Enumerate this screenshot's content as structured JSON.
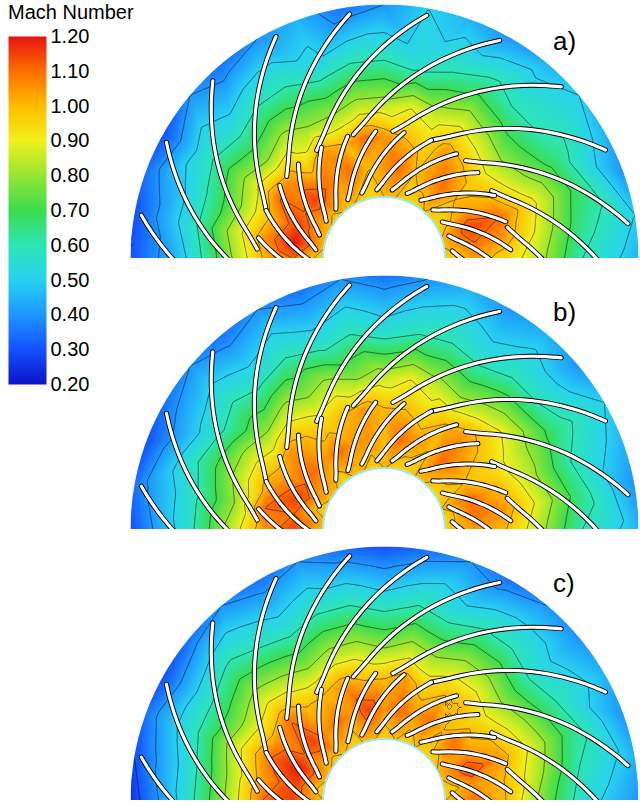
{
  "chart_data": {
    "type": "contour",
    "colorbar": {
      "title": "Mach Number",
      "lim": [
        0.2,
        1.2
      ],
      "ticks": [
        {
          "value": 0.2,
          "label": "0.20"
        },
        {
          "value": 0.3,
          "label": "0.30"
        },
        {
          "value": 0.4,
          "label": "0.40"
        },
        {
          "value": 0.5,
          "label": "0.50"
        },
        {
          "value": 0.6,
          "label": "0.60"
        },
        {
          "value": 0.7,
          "label": "0.70"
        },
        {
          "value": 0.8,
          "label": "0.80"
        },
        {
          "value": 0.9,
          "label": "0.90"
        },
        {
          "value": 1.0,
          "label": "1.00"
        },
        {
          "value": 1.1,
          "label": "1.10"
        },
        {
          "value": 1.2,
          "label": "1.20"
        }
      ],
      "colors": [
        "#0a14c8",
        "#1450ff",
        "#1e96ff",
        "#28d2f0",
        "#2de6b4",
        "#3cdc50",
        "#96e632",
        "#f0f01e",
        "#ffbe00",
        "#ff6e00",
        "#e61414"
      ]
    },
    "radii": [
      0.24,
      0.36,
      0.48,
      0.6,
      0.78,
      1.0
    ],
    "angles": [
      0,
      10,
      20,
      30,
      40,
      50,
      60,
      70,
      80,
      90,
      100,
      110,
      120,
      130,
      140,
      150,
      160,
      170,
      180
    ],
    "panels": [
      {
        "label": "a)",
        "mach": [
          [
            0.95,
            1.0,
            1.0,
            0.95,
            0.95,
            1.0,
            0.95,
            0.95,
            1.0,
            1.0,
            0.95,
            0.95,
            1.0,
            1.0,
            0.95,
            1.0,
            1.0,
            1.0,
            0.95
          ],
          [
            1.05,
            1.1,
            1.15,
            1.05,
            1.0,
            1.1,
            1.05,
            1.0,
            1.1,
            1.05,
            1.0,
            1.1,
            1.05,
            1.1,
            1.15,
            1.1,
            1.15,
            1.2,
            1.1
          ],
          [
            0.95,
            1.05,
            1.1,
            1.0,
            0.95,
            1.0,
            1.05,
            0.95,
            1.0,
            1.05,
            1.1,
            1.0,
            1.05,
            0.95,
            1.05,
            1.1,
            1.0,
            1.05,
            1.0
          ],
          [
            0.85,
            0.9,
            0.95,
            0.85,
            0.8,
            0.85,
            0.9,
            0.85,
            0.9,
            0.85,
            0.85,
            0.8,
            0.8,
            0.85,
            0.8,
            0.85,
            0.8,
            0.85,
            0.8
          ],
          [
            0.6,
            0.65,
            0.7,
            0.65,
            0.6,
            0.6,
            0.65,
            0.6,
            0.55,
            0.6,
            0.6,
            0.55,
            0.6,
            0.6,
            0.55,
            0.6,
            0.55,
            0.55,
            0.5
          ],
          [
            0.45,
            0.5,
            0.4,
            0.45,
            0.5,
            0.45,
            0.4,
            0.45,
            0.5,
            0.4,
            0.35,
            0.45,
            0.4,
            0.35,
            0.4,
            0.3,
            0.35,
            0.3,
            0.3
          ]
        ]
      },
      {
        "label": "b)",
        "mach": [
          [
            0.95,
            0.95,
            1.0,
            0.95,
            0.95,
            1.0,
            1.0,
            0.95,
            0.95,
            1.0,
            0.95,
            1.0,
            1.0,
            0.95,
            1.0,
            1.0,
            0.95,
            1.0,
            1.0
          ],
          [
            1.05,
            1.1,
            1.1,
            1.0,
            1.05,
            1.1,
            1.0,
            1.05,
            1.1,
            1.0,
            1.05,
            1.05,
            1.1,
            1.05,
            1.1,
            1.1,
            1.15,
            1.1,
            1.15
          ],
          [
            1.0,
            1.05,
            1.0,
            0.95,
            1.0,
            1.05,
            1.0,
            0.95,
            1.0,
            1.0,
            1.05,
            1.0,
            0.95,
            1.0,
            1.05,
            1.0,
            1.05,
            1.1,
            1.05
          ],
          [
            0.85,
            0.9,
            0.85,
            0.85,
            0.9,
            0.85,
            0.8,
            0.85,
            0.9,
            0.85,
            0.8,
            0.85,
            0.8,
            0.85,
            0.8,
            0.85,
            0.85,
            0.8,
            0.85
          ],
          [
            0.6,
            0.65,
            0.6,
            0.65,
            0.6,
            0.6,
            0.55,
            0.6,
            0.6,
            0.55,
            0.6,
            0.55,
            0.6,
            0.55,
            0.6,
            0.55,
            0.6,
            0.55,
            0.55
          ],
          [
            0.45,
            0.4,
            0.45,
            0.5,
            0.4,
            0.45,
            0.4,
            0.45,
            0.4,
            0.35,
            0.4,
            0.35,
            0.4,
            0.35,
            0.4,
            0.35,
            0.3,
            0.35,
            0.3
          ]
        ]
      },
      {
        "label": "c)",
        "mach": [
          [
            1.0,
            0.95,
            1.0,
            1.0,
            0.95,
            0.95,
            1.0,
            0.95,
            1.0,
            0.95,
            1.0,
            1.0,
            0.95,
            1.0,
            0.95,
            1.0,
            1.0,
            0.95,
            1.0
          ],
          [
            1.1,
            1.05,
            1.15,
            1.05,
            1.1,
            1.0,
            1.1,
            1.05,
            1.1,
            1.05,
            1.15,
            1.05,
            1.1,
            1.05,
            1.15,
            1.1,
            1.2,
            1.15,
            1.15
          ],
          [
            1.0,
            1.0,
            1.05,
            1.0,
            0.95,
            1.0,
            1.0,
            0.95,
            1.05,
            1.0,
            1.0,
            1.05,
            1.0,
            1.0,
            1.1,
            1.05,
            1.1,
            1.05,
            1.1
          ],
          [
            0.8,
            0.85,
            0.9,
            0.85,
            0.8,
            0.85,
            0.85,
            0.8,
            0.85,
            0.8,
            0.85,
            0.85,
            0.8,
            0.85,
            0.9,
            0.85,
            0.9,
            0.85,
            0.85
          ],
          [
            0.55,
            0.6,
            0.65,
            0.6,
            0.55,
            0.6,
            0.6,
            0.55,
            0.6,
            0.55,
            0.6,
            0.6,
            0.55,
            0.6,
            0.65,
            0.6,
            0.6,
            0.55,
            0.55
          ],
          [
            0.4,
            0.45,
            0.4,
            0.45,
            0.4,
            0.4,
            0.35,
            0.4,
            0.35,
            0.3,
            0.35,
            0.4,
            0.35,
            0.4,
            0.35,
            0.3,
            0.35,
            0.3,
            0.25
          ]
        ]
      }
    ]
  }
}
